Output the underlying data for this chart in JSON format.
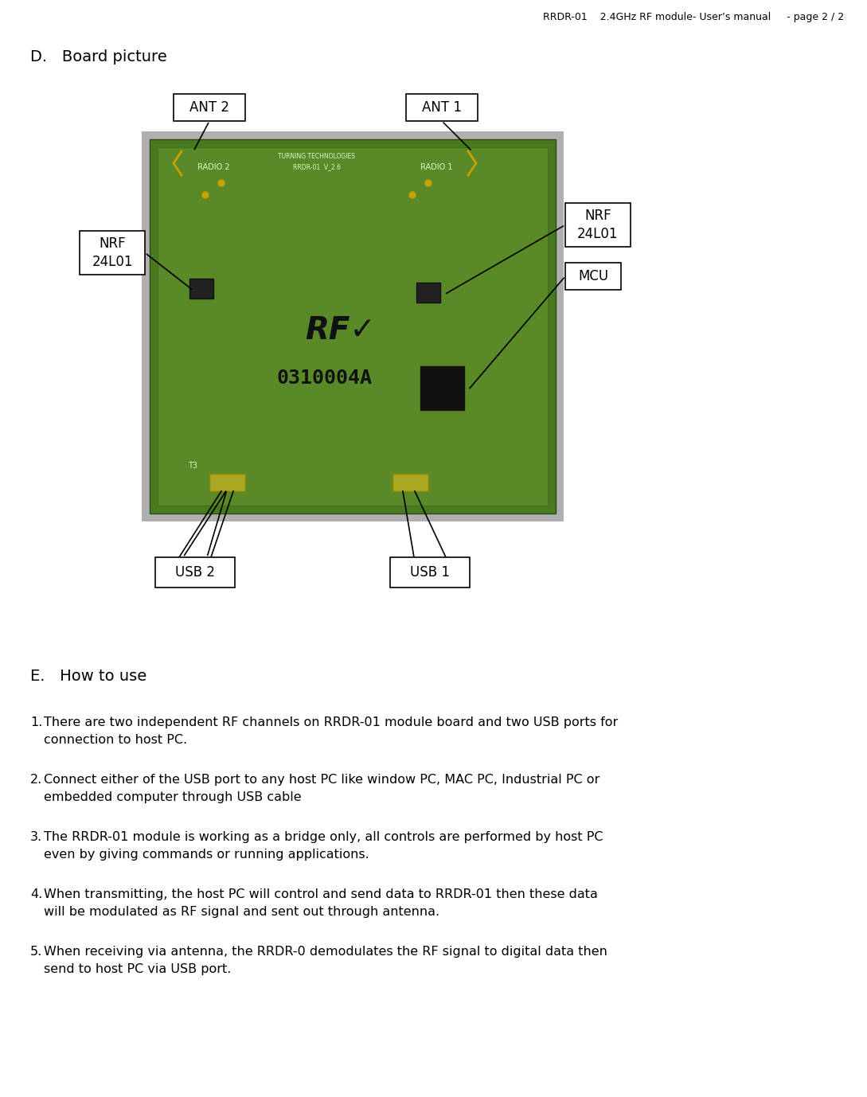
{
  "header_text": "RRDR-01    2.4GHz RF module- User’s manual     - page 2 / 2",
  "section_d": "D.   Board picture",
  "section_e": "E.   How to use",
  "instructions": [
    "There are two independent RF channels on RRDR-01 module board and two USB ports for connection to host PC.",
    "Connect either of the USB port to any host PC like window PC, MAC PC, Industrial PC or embedded computer through USB cable",
    "The RRDR-01 module is working as a bridge only, all controls are performed by host PC even by giving commands or running applications.",
    "When transmitting, the host PC will control and send data to RRDR-01 then these data will be modulated as RF signal and sent out through antenna.",
    "When receiving via antenna, the RRDR-0 demodulates the RF signal to digital data then send to host PC via USB port."
  ],
  "bg_color": "#ffffff",
  "text_color": "#000000",
  "header_fontsize": 9,
  "section_fontsize": 14,
  "body_fontsize": 11.5,
  "label_fontsize": 12
}
